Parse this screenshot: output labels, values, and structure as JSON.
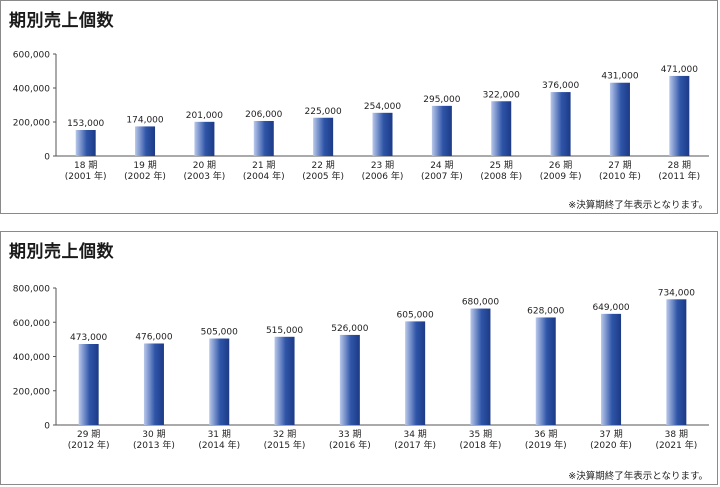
{
  "panels": [
    {
      "title": "期別売上個数",
      "note": "※決算期終了年表示となります。"
    },
    {
      "title": "期別売上個数",
      "note": "※決算期終了年表示となります。"
    }
  ],
  "chart_data": [
    {
      "type": "bar",
      "title": "期別売上個数",
      "ylim": [
        0,
        600000
      ],
      "yticks": [
        "0",
        "200,000",
        "400,000",
        "600,000"
      ],
      "grid": false,
      "bar_color": "#2f55a8",
      "categories": [
        {
          "period": "18 期",
          "year": "(2001 年)"
        },
        {
          "period": "19 期",
          "year": "(2002 年)"
        },
        {
          "period": "20 期",
          "year": "(2003 年)"
        },
        {
          "period": "21 期",
          "year": "(2004 年)"
        },
        {
          "period": "22 期",
          "year": "(2005 年)"
        },
        {
          "period": "23 期",
          "year": "(2006 年)"
        },
        {
          "period": "24 期",
          "year": "(2007 年)"
        },
        {
          "period": "25 期",
          "year": "(2008 年)"
        },
        {
          "period": "26 期",
          "year": "(2009 年)"
        },
        {
          "period": "27 期",
          "year": "(2010 年)"
        },
        {
          "period": "28 期",
          "year": "(2011 年)"
        }
      ],
      "values": [
        153000,
        174000,
        201000,
        206000,
        225000,
        254000,
        295000,
        322000,
        376000,
        431000,
        471000
      ],
      "value_labels": [
        "153,000",
        "174,000",
        "201,000",
        "206,000",
        "225,000",
        "254,000",
        "295,000",
        "322,000",
        "376,000",
        "431,000",
        "471,000"
      ]
    },
    {
      "type": "bar",
      "title": "期別売上個数",
      "ylim": [
        0,
        800000
      ],
      "yticks": [
        "0",
        "200,000",
        "400,000",
        "600,000",
        "800,000"
      ],
      "grid": false,
      "bar_color": "#2f55a8",
      "categories": [
        {
          "period": "29 期",
          "year": "(2012 年)"
        },
        {
          "period": "30 期",
          "year": "(2013 年)"
        },
        {
          "period": "31 期",
          "year": "(2014 年)"
        },
        {
          "period": "32 期",
          "year": "(2015 年)"
        },
        {
          "period": "33 期",
          "year": "(2016 年)"
        },
        {
          "period": "34 期",
          "year": "(2017 年)"
        },
        {
          "period": "35 期",
          "year": "(2018 年)"
        },
        {
          "period": "36 期",
          "year": "(2019 年)"
        },
        {
          "period": "37 期",
          "year": "(2020 年)"
        },
        {
          "period": "38 期",
          "year": "(2021 年)"
        }
      ],
      "values": [
        473000,
        476000,
        505000,
        515000,
        526000,
        605000,
        680000,
        628000,
        649000,
        734000
      ],
      "value_labels": [
        "473,000",
        "476,000",
        "505,000",
        "515,000",
        "526,000",
        "605,000",
        "680,000",
        "628,000",
        "649,000",
        "734,000"
      ]
    }
  ]
}
